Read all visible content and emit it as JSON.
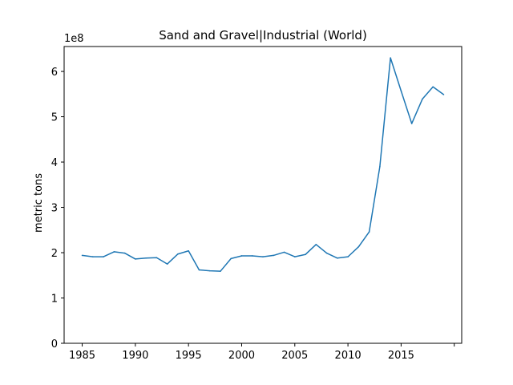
{
  "chart_data": {
    "type": "line",
    "title": "Sand and Gravel|Industrial (World)",
    "xlabel": "",
    "ylabel": "metric tons",
    "y_offset_label": "1e8",
    "xlim": [
      1983.3,
      2020.7
    ],
    "ylim": [
      0,
      655000000
    ],
    "x_ticks": [
      1985,
      1990,
      1995,
      2000,
      2005,
      2010,
      2015,
      2020
    ],
    "x_tick_labels": [
      "1985",
      "1990",
      "1995",
      "2000",
      "2005",
      "2010",
      "2015",
      ""
    ],
    "y_ticks": [
      0,
      100000000,
      200000000,
      300000000,
      400000000,
      500000000,
      600000000
    ],
    "y_tick_labels": [
      "0",
      "1",
      "2",
      "3",
      "4",
      "5",
      "6"
    ],
    "grid": false,
    "series": [
      {
        "color": "#1f77b4",
        "x": [
          1985,
          1986,
          1987,
          1988,
          1989,
          1990,
          1991,
          1992,
          1993,
          1994,
          1995,
          1996,
          1997,
          1998,
          1999,
          2000,
          2001,
          2002,
          2003,
          2004,
          2005,
          2006,
          2007,
          2008,
          2009,
          2010,
          2011,
          2012,
          2013,
          2014,
          2015,
          2016,
          2017,
          2018,
          2019
        ],
        "values": [
          194000000,
          191000000,
          191000000,
          202000000,
          199000000,
          186000000,
          188000000,
          189000000,
          175000000,
          197000000,
          204000000,
          162000000,
          160000000,
          159000000,
          187000000,
          193000000,
          193000000,
          191000000,
          194000000,
          201000000,
          191000000,
          196000000,
          218000000,
          199000000,
          188000000,
          191000000,
          213000000,
          246000000,
          390000000,
          630000000,
          557000000,
          485000000,
          539000000,
          566000000,
          549000000
        ]
      }
    ]
  }
}
